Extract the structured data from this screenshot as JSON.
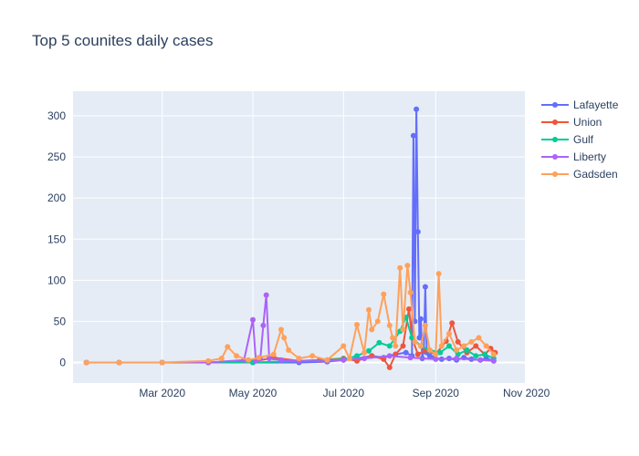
{
  "chart_data": {
    "type": "line",
    "title": "Top 5 counites daily cases",
    "xlabel": "",
    "ylabel": "",
    "x_range": [
      "2020-01-01",
      "2020-10-31"
    ],
    "ylim": [
      -25,
      330
    ],
    "y_ticks": [
      0,
      50,
      100,
      150,
      200,
      250,
      300
    ],
    "y_tick_labels": [
      "0",
      "50",
      "100",
      "150",
      "200",
      "250",
      "300"
    ],
    "x_ticks": [
      "2020-03-01",
      "2020-05-01",
      "2020-07-01",
      "2020-09-01",
      "2020-11-01"
    ],
    "x_tick_labels": [
      "Mar 2020",
      "May 2020",
      "Jul 2020",
      "Sep 2020",
      "Nov 2020"
    ],
    "grid": true,
    "legend_position": "top-right",
    "series": [
      {
        "name": "Lafayette",
        "color": "#636efa",
        "x": [
          "2020-01-10",
          "2020-02-01",
          "2020-03-01",
          "2020-04-01",
          "2020-05-01",
          "2020-06-01",
          "2020-06-20",
          "2020-07-01",
          "2020-07-10",
          "2020-07-20",
          "2020-07-28",
          "2020-08-05",
          "2020-08-12",
          "2020-08-16",
          "2020-08-17",
          "2020-08-18",
          "2020-08-19",
          "2020-08-20",
          "2020-08-21",
          "2020-08-22",
          "2020-08-23",
          "2020-08-24",
          "2020-08-25",
          "2020-08-26",
          "2020-08-28",
          "2020-08-31",
          "2020-09-05",
          "2020-09-10",
          "2020-09-15",
          "2020-09-20",
          "2020-09-25",
          "2020-10-01",
          "2020-10-05",
          "2020-10-10"
        ],
        "values": [
          0,
          0,
          0,
          0,
          0,
          0,
          1,
          3,
          5,
          8,
          6,
          10,
          12,
          8,
          276,
          50,
          308,
          159,
          30,
          53,
          5,
          15,
          92,
          12,
          8,
          6,
          4,
          5,
          3,
          6,
          4,
          3,
          5,
          2
        ]
      },
      {
        "name": "Union",
        "color": "#ef553b",
        "x": [
          "2020-01-10",
          "2020-02-01",
          "2020-03-01",
          "2020-04-01",
          "2020-05-01",
          "2020-05-15",
          "2020-06-01",
          "2020-06-15",
          "2020-07-01",
          "2020-07-10",
          "2020-07-20",
          "2020-07-28",
          "2020-08-01",
          "2020-08-05",
          "2020-08-10",
          "2020-08-14",
          "2020-08-16",
          "2020-08-20",
          "2020-08-25",
          "2020-09-01",
          "2020-09-08",
          "2020-09-12",
          "2020-09-16",
          "2020-09-22",
          "2020-09-28",
          "2020-10-04",
          "2020-10-08",
          "2020-10-11"
        ],
        "values": [
          0,
          0,
          0,
          0,
          1,
          6,
          2,
          3,
          5,
          2,
          8,
          4,
          -6,
          10,
          20,
          65,
          30,
          10,
          15,
          10,
          26,
          48,
          25,
          12,
          20,
          10,
          17,
          12
        ]
      },
      {
        "name": "Gulf",
        "color": "#00cc96",
        "x": [
          "2020-01-10",
          "2020-02-01",
          "2020-03-01",
          "2020-04-01",
          "2020-05-01",
          "2020-06-01",
          "2020-06-20",
          "2020-07-01",
          "2020-07-10",
          "2020-07-18",
          "2020-07-25",
          "2020-08-01",
          "2020-08-08",
          "2020-08-12",
          "2020-08-16",
          "2020-08-22",
          "2020-08-28",
          "2020-09-04",
          "2020-09-10",
          "2020-09-16",
          "2020-09-22",
          "2020-09-28",
          "2020-10-04",
          "2020-10-10"
        ],
        "values": [
          0,
          0,
          0,
          0,
          0,
          2,
          3,
          4,
          8,
          14,
          24,
          20,
          38,
          55,
          30,
          20,
          15,
          12,
          20,
          10,
          15,
          8,
          10,
          5
        ]
      },
      {
        "name": "Liberty",
        "color": "#ab63fa",
        "x": [
          "2020-01-10",
          "2020-02-01",
          "2020-03-01",
          "2020-04-01",
          "2020-04-25",
          "2020-05-01",
          "2020-05-03",
          "2020-05-06",
          "2020-05-08",
          "2020-05-10",
          "2020-05-12",
          "2020-05-20",
          "2020-06-01",
          "2020-06-20",
          "2020-07-01",
          "2020-07-15",
          "2020-08-01",
          "2020-08-15",
          "2020-09-01",
          "2020-09-15",
          "2020-10-01",
          "2020-10-10"
        ],
        "values": [
          0,
          0,
          0,
          0,
          3,
          52,
          2,
          5,
          45,
          82,
          5,
          3,
          2,
          2,
          3,
          5,
          8,
          6,
          4,
          5,
          3,
          2
        ]
      },
      {
        "name": "Gadsden",
        "color": "#ffa15a",
        "x": [
          "2020-01-10",
          "2020-02-01",
          "2020-03-01",
          "2020-04-01",
          "2020-04-10",
          "2020-04-14",
          "2020-04-20",
          "2020-04-28",
          "2020-05-05",
          "2020-05-15",
          "2020-05-20",
          "2020-05-22",
          "2020-05-25",
          "2020-06-01",
          "2020-06-10",
          "2020-06-20",
          "2020-07-01",
          "2020-07-05",
          "2020-07-10",
          "2020-07-15",
          "2020-07-18",
          "2020-07-20",
          "2020-07-24",
          "2020-07-28",
          "2020-08-01",
          "2020-08-03",
          "2020-08-05",
          "2020-08-08",
          "2020-08-10",
          "2020-08-13",
          "2020-08-15",
          "2020-08-18",
          "2020-08-22",
          "2020-08-25",
          "2020-08-28",
          "2020-09-01",
          "2020-09-03",
          "2020-09-05",
          "2020-09-10",
          "2020-09-15",
          "2020-09-20",
          "2020-09-25",
          "2020-09-30",
          "2020-10-05",
          "2020-10-10"
        ],
        "values": [
          0,
          0,
          0,
          2,
          5,
          19,
          8,
          3,
          6,
          10,
          40,
          30,
          15,
          5,
          8,
          3,
          20,
          5,
          46,
          12,
          64,
          40,
          50,
          83,
          45,
          30,
          20,
          115,
          40,
          118,
          85,
          25,
          20,
          45,
          15,
          10,
          108,
          20,
          35,
          15,
          20,
          25,
          30,
          20,
          10
        ]
      }
    ]
  }
}
